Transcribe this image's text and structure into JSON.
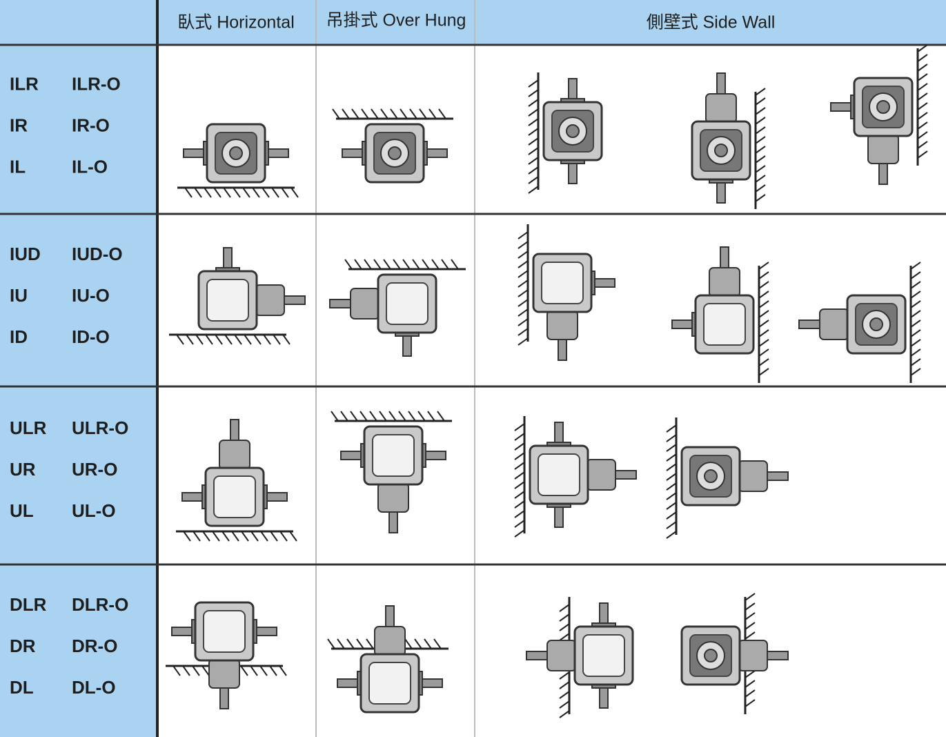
{
  "header": {
    "horizontal": "臥式 Horizontal",
    "over_hung": "吊掛式 Over Hung",
    "side_wall": "側壁式  Side Wall"
  },
  "rows": [
    {
      "codes": [
        [
          "ILR",
          "ILR-O"
        ],
        [
          "IR",
          "IR-O"
        ],
        [
          "IL",
          "IL-O"
        ]
      ]
    },
    {
      "codes": [
        [
          "IUD",
          "IUD-O"
        ],
        [
          "IU",
          "IU-O"
        ],
        [
          "ID",
          "ID-O"
        ]
      ]
    },
    {
      "codes": [
        [
          "ULR",
          "ULR-O"
        ],
        [
          "UR",
          "UR-O"
        ],
        [
          "UL",
          "UL-O"
        ]
      ]
    },
    {
      "codes": [
        [
          "DLR",
          "DLR-O"
        ],
        [
          "DR",
          "DR-O"
        ],
        [
          "DL",
          "DL-O"
        ]
      ]
    }
  ]
}
